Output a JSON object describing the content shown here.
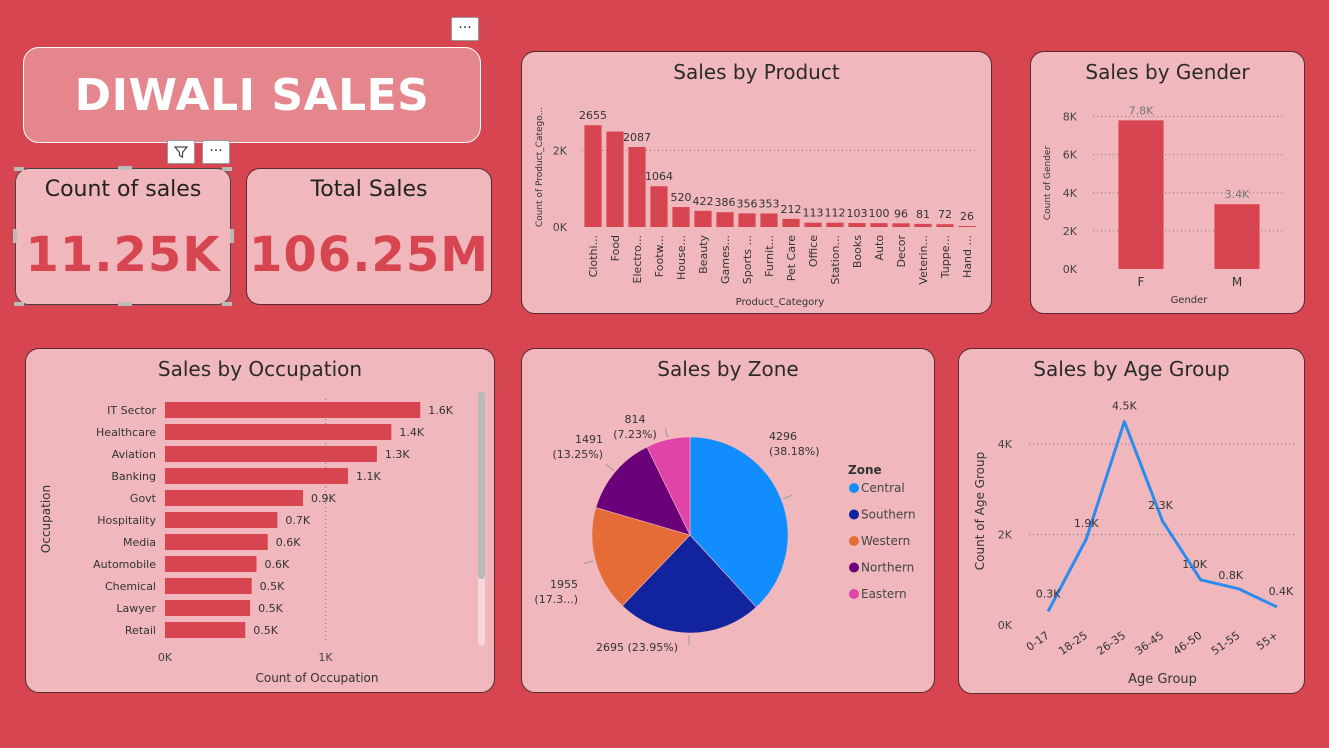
{
  "header": {
    "title": "DIWALI SALES"
  },
  "kpis": {
    "count": {
      "label": "Count of sales",
      "value": "11.25K"
    },
    "total": {
      "label": "Total Sales",
      "value": "106.25M"
    }
  },
  "toolbar": {
    "more_label": "···"
  },
  "colors": {
    "background": "#d64550",
    "card": "#f0b8bc",
    "bar": "#d64550",
    "line": "#2b8cf0"
  },
  "chart_data": [
    {
      "id": "product",
      "type": "bar",
      "title": "Sales by Product",
      "xlabel": "Product_Category",
      "ylabel": "Count of Product_Catego...",
      "ylim": [
        0,
        3000
      ],
      "yticks": [
        {
          "v": 0,
          "label": "0K"
        },
        {
          "v": 2000,
          "label": "2K"
        }
      ],
      "categories": [
        "Clothi...",
        "Food",
        "Electro...",
        "Footw...",
        "House...",
        "Beauty",
        "Games...",
        "Sports ...",
        "Furnit...",
        "Pet Care",
        "Office",
        "Station...",
        "Books",
        "Auto",
        "Decor",
        "Veterin...",
        "Tuppe...",
        "Hand ..."
      ],
      "values": [
        2655,
        2490,
        2087,
        1064,
        520,
        422,
        386,
        356,
        353,
        212,
        113,
        112,
        103,
        100,
        96,
        81,
        72,
        26
      ],
      "value_labels": [
        "2655",
        "",
        "2087",
        "1064",
        "520",
        "422",
        "386",
        "356",
        "353",
        "212",
        "113",
        "112",
        "103",
        "100",
        "96",
        "81",
        "72",
        "26"
      ]
    },
    {
      "id": "gender",
      "type": "bar",
      "title": "Sales by Gender",
      "xlabel": "Gender",
      "ylabel": "Count of Gender",
      "ylim": [
        0,
        8500
      ],
      "yticks": [
        {
          "v": 0,
          "label": "0K"
        },
        {
          "v": 2000,
          "label": "2K"
        },
        {
          "v": 4000,
          "label": "4K"
        },
        {
          "v": 6000,
          "label": "6K"
        },
        {
          "v": 8000,
          "label": "8K"
        }
      ],
      "categories": [
        "F",
        "M"
      ],
      "values": [
        7800,
        3400
      ],
      "value_labels": [
        "7.8K",
        "3.4K"
      ]
    },
    {
      "id": "occupation",
      "type": "bar",
      "orientation": "horizontal",
      "title": "Sales by Occupation",
      "xlabel": "Count of Occupation",
      "ylabel": "Occupation",
      "xlim": [
        0,
        1900
      ],
      "xticks": [
        {
          "v": 0,
          "label": "0K"
        },
        {
          "v": 1000,
          "label": "1K"
        }
      ],
      "categories": [
        "IT Sector",
        "Healthcare",
        "Aviation",
        "Banking",
        "Govt",
        "Hospitality",
        "Media",
        "Automobile",
        "Chemical",
        "Lawyer",
        "Retail"
      ],
      "values": [
        1590,
        1410,
        1320,
        1140,
        860,
        700,
        640,
        570,
        540,
        530,
        500
      ],
      "value_labels": [
        "1.6K",
        "1.4K",
        "1.3K",
        "1.1K",
        "0.9K",
        "0.7K",
        "0.6K",
        "0.6K",
        "0.5K",
        "0.5K",
        "0.5K"
      ]
    },
    {
      "id": "zone",
      "type": "pie",
      "title": "Sales by Zone",
      "legend_title": "Zone",
      "legend_position": "right",
      "slices": [
        {
          "name": "Central",
          "value": 4296,
          "color": "#118dff",
          "label_a": "4296",
          "label_b": "(38.18%)"
        },
        {
          "name": "Southern",
          "value": 2695,
          "color": "#12239e",
          "label_a": "2695 (23.95%)",
          "label_b": ""
        },
        {
          "name": "Western",
          "value": 1955,
          "color": "#e66c37",
          "label_a": "1955",
          "label_b": "(17.3...)"
        },
        {
          "name": "Northern",
          "value": 1491,
          "color": "#6b007b",
          "label_a": "1491",
          "label_b": "(13.25%)"
        },
        {
          "name": "Eastern",
          "value": 814,
          "color": "#e044a7",
          "label_a": "814",
          "label_b": "(7.23%)"
        }
      ]
    },
    {
      "id": "age",
      "type": "line",
      "title": "Sales by Age Group",
      "xlabel": "Age Group",
      "ylabel": "Count of Age Group",
      "ylim": [
        0,
        5000
      ],
      "yticks": [
        {
          "v": 0,
          "label": "0K"
        },
        {
          "v": 2000,
          "label": "2K"
        },
        {
          "v": 4000,
          "label": "4K"
        }
      ],
      "categories": [
        "0-17",
        "18-25",
        "26-35",
        "36-45",
        "46-50",
        "51-55",
        "55+"
      ],
      "values": [
        300,
        1900,
        4500,
        2300,
        1000,
        800,
        400
      ],
      "value_labels": [
        "0.3K",
        "1.9K",
        "4.5K",
        "2.3K",
        "1.0K",
        "0.8K",
        "0.4K"
      ]
    }
  ]
}
